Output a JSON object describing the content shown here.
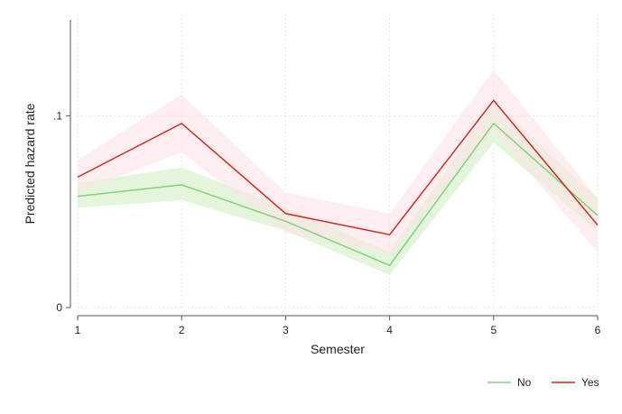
{
  "chart_data": {
    "type": "line",
    "xlabel": "Semester",
    "ylabel": "Predicted hazard rate",
    "x": [
      1,
      2,
      3,
      4,
      5,
      6
    ],
    "xticks": [
      1,
      2,
      3,
      4,
      5,
      6
    ],
    "yticks": [
      0,
      0.1
    ],
    "ytick_labels": [
      "0",
      ".1"
    ],
    "xlim": [
      1,
      6
    ],
    "ylim": [
      0,
      0.15
    ],
    "grid": true,
    "legend": "bottom-right",
    "series": [
      {
        "name": "No",
        "color": "#7fd37a",
        "band_color": "#dff3d6",
        "values": [
          0.058,
          0.064,
          0.045,
          0.022,
          0.096,
          0.048
        ],
        "lower": [
          0.052,
          0.056,
          0.04,
          0.017,
          0.086,
          0.04
        ],
        "upper": [
          0.065,
          0.073,
          0.052,
          0.029,
          0.107,
          0.057
        ]
      },
      {
        "name": "Yes",
        "color": "#cc2a2a",
        "band_color": "#fbe4e4",
        "values": [
          0.068,
          0.096,
          0.049,
          0.038,
          0.108,
          0.043
        ],
        "lower": [
          0.06,
          0.081,
          0.039,
          0.028,
          0.092,
          0.029
        ],
        "upper": [
          0.077,
          0.111,
          0.06,
          0.049,
          0.124,
          0.057
        ]
      }
    ]
  }
}
